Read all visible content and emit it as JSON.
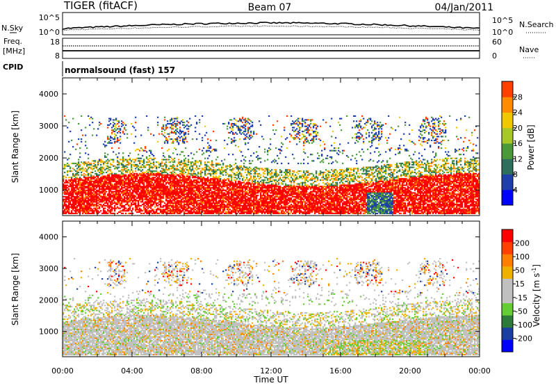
{
  "header": {
    "station": "TIGER (fitACF)",
    "beam": "Beam 07",
    "date": "04/Jan/2011"
  },
  "noise_panel": {
    "left_label": "N.Sky",
    "right_label": "N.Search",
    "left_ticks": [
      "10^5",
      "10^0"
    ],
    "right_ticks": [
      "10^5",
      "10^0"
    ]
  },
  "freq_panel": {
    "left_label_1": "Freq.",
    "left_label_2": "[MHz]",
    "right_label": "Nave",
    "left_ticks": [
      "18",
      "8"
    ],
    "right_ticks": [
      "60",
      "0"
    ]
  },
  "cpid": {
    "label": "CPID",
    "value": "normalsound (fast) 157"
  },
  "colors": {
    "power_scale": [
      "#0000ff",
      "#1f3fa8",
      "#2e6e5c",
      "#4b9a3a",
      "#a8c828",
      "#f0c800",
      "#ff8c00",
      "#ff4000",
      "#ff0000"
    ],
    "velocity_scale": [
      "#0000ff",
      "#1a3fa0",
      "#2e7a3a",
      "#66cc33",
      "#c0c0c0",
      "#c0c0c0",
      "#f0b000",
      "#ff8000",
      "#ff4000",
      "#ff0000"
    ]
  },
  "chart_data": [
    {
      "type": "heatmap",
      "name": "power",
      "ylabel": "Slant Range [km]",
      "yticks": [
        1000,
        2000,
        3000,
        4000
      ],
      "ylim": [
        200,
        4500
      ],
      "xlim": [
        0,
        24
      ],
      "colorbar_label": "Power [dB]",
      "colorbar_ticks": [
        "4",
        "8",
        "12",
        "16",
        "20",
        "24",
        "28"
      ]
    },
    {
      "type": "heatmap",
      "name": "velocity",
      "ylabel": "Slant Range [km]",
      "yticks": [
        1000,
        2000,
        3000,
        4000
      ],
      "ylim": [
        200,
        4500
      ],
      "xlim": [
        0,
        24
      ],
      "colorbar_label": "Velocity [m s",
      "colorbar_label_sup": "-1",
      "colorbar_label_end": "]",
      "colorbar_ticks": [
        "200",
        "100",
        "50",
        "15",
        "-15",
        "-50",
        "-100",
        "-200"
      ]
    }
  ],
  "time_axis": {
    "ticks": [
      "00:00",
      "04:00",
      "08:00",
      "12:00",
      "16:00",
      "20:00",
      "00:00"
    ],
    "label": "Time UT"
  }
}
